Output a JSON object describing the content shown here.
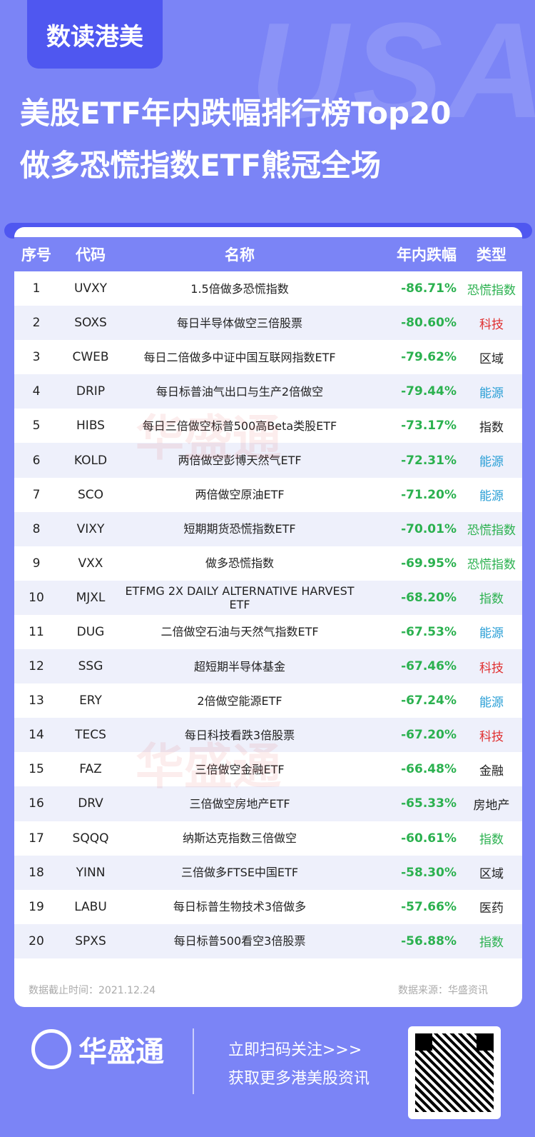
{
  "brand_tab": "数读港美",
  "bg_word": "USA",
  "title_line1": "美股ETF年内跌幅排行榜Top20",
  "title_line2": "做多恐慌指数ETF熊冠全场",
  "table": {
    "headers": {
      "no": "序号",
      "code": "代码",
      "name": "名称",
      "change": "年内跌幅",
      "type": "类型"
    },
    "rows": [
      {
        "no": "1",
        "code": "UVXY",
        "name": "1.5倍做多恐慌指数",
        "change": "-86.71%",
        "type": "恐慌指数",
        "type_color": "#2bb14f"
      },
      {
        "no": "2",
        "code": "SOXS",
        "name": "每日半导体做空三倍股票",
        "change": "-80.60%",
        "type": "科技",
        "type_color": "#e03030"
      },
      {
        "no": "3",
        "code": "CWEB",
        "name": "每日二倍做多中证中国互联网指数ETF",
        "change": "-79.62%",
        "type": "区域",
        "type_color": "#222222"
      },
      {
        "no": "4",
        "code": "DRIP",
        "name": "每日标普油气出口与生产2倍做空",
        "change": "-79.44%",
        "type": "能源",
        "type_color": "#2a9fd6"
      },
      {
        "no": "5",
        "code": "HIBS",
        "name": "每日三倍做空标普500高Beta类股ETF",
        "change": "-73.17%",
        "type": "指数",
        "type_color": "#222222"
      },
      {
        "no": "6",
        "code": "KOLD",
        "name": "两倍做空彭博天然气ETF",
        "change": "-72.31%",
        "type": "能源",
        "type_color": "#2a9fd6"
      },
      {
        "no": "7",
        "code": "SCO",
        "name": "两倍做空原油ETF",
        "change": "-71.20%",
        "type": "能源",
        "type_color": "#2a9fd6"
      },
      {
        "no": "8",
        "code": "VIXY",
        "name": "短期期货恐慌指数ETF",
        "change": "-70.01%",
        "type": "恐慌指数",
        "type_color": "#2bb14f"
      },
      {
        "no": "9",
        "code": "VXX",
        "name": "做多恐慌指数",
        "change": "-69.95%",
        "type": "恐慌指数",
        "type_color": "#2bb14f"
      },
      {
        "no": "10",
        "code": "MJXL",
        "name": "ETFMG 2X DAILY ALTERNATIVE HARVEST ETF",
        "change": "-68.20%",
        "type": "指数",
        "type_color": "#2bb14f"
      },
      {
        "no": "11",
        "code": "DUG",
        "name": "二倍做空石油与天然气指数ETF",
        "change": "-67.53%",
        "type": "能源",
        "type_color": "#2a9fd6"
      },
      {
        "no": "12",
        "code": "SSG",
        "name": "超短期半导体基金",
        "change": "-67.46%",
        "type": "科技",
        "type_color": "#e03030"
      },
      {
        "no": "13",
        "code": "ERY",
        "name": "2倍做空能源ETF",
        "change": "-67.24%",
        "type": "能源",
        "type_color": "#2a9fd6"
      },
      {
        "no": "14",
        "code": "TECS",
        "name": "每日科技看跌3倍股票",
        "change": "-67.20%",
        "type": "科技",
        "type_color": "#e03030"
      },
      {
        "no": "15",
        "code": "FAZ",
        "name": "三倍做空金融ETF",
        "change": "-66.48%",
        "type": "金融",
        "type_color": "#222222"
      },
      {
        "no": "16",
        "code": "DRV",
        "name": "三倍做空房地产ETF",
        "change": "-65.33%",
        "type": "房地产",
        "type_color": "#222222"
      },
      {
        "no": "17",
        "code": "SQQQ",
        "name": "纳斯达克指数三倍做空",
        "change": "-60.61%",
        "type": "指数",
        "type_color": "#2bb14f"
      },
      {
        "no": "18",
        "code": "YINN",
        "name": "三倍做多FTSE中国ETF",
        "change": "-58.30%",
        "type": "区域",
        "type_color": "#222222"
      },
      {
        "no": "19",
        "code": "LABU",
        "name": "每日标普生物技术3倍做多",
        "change": "-57.66%",
        "type": "医药",
        "type_color": "#222222"
      },
      {
        "no": "20",
        "code": "SPXS",
        "name": "每日标普500看空3倍股票",
        "change": "-56.88%",
        "type": "指数",
        "type_color": "#2bb14f"
      }
    ]
  },
  "footer_left": "数据截止时间：2021.12.24",
  "footer_right": "数据来源：华盛资讯",
  "watermark_text": "华盛通",
  "bottom_brand": "华盛通",
  "cta_line1": "立即扫码关注>>>",
  "cta_line2": "获取更多港美股资讯",
  "colors": {
    "background": "#7b84f6",
    "accent": "#4f57f0",
    "negative": "#2bb14f"
  }
}
